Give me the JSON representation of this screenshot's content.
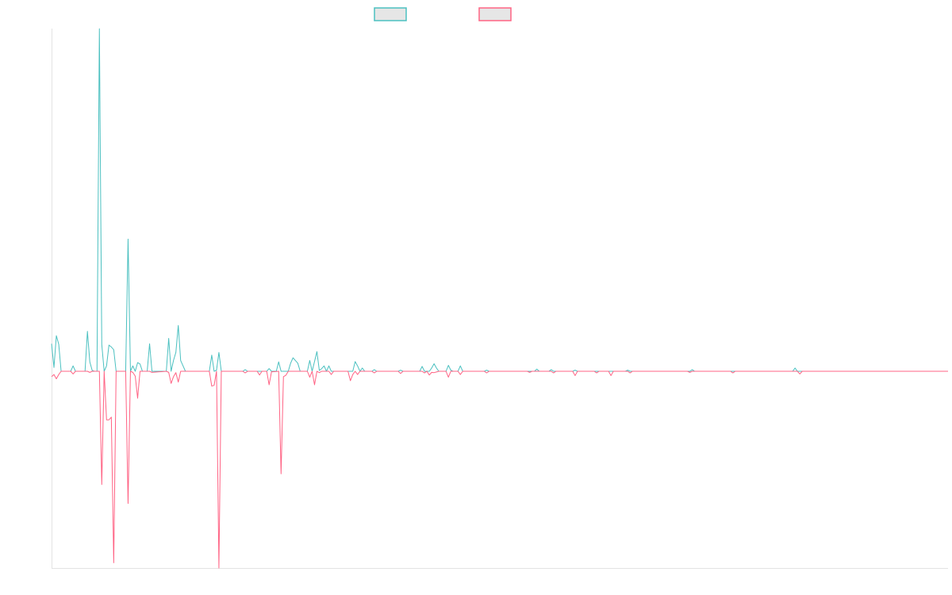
{
  "chart_data": {
    "type": "line",
    "title": "",
    "xlabel": "",
    "ylabel": "",
    "grid": false,
    "legend_position": "top-center",
    "point_count": 376,
    "ylim": [
      -1.0,
      1.0
    ],
    "series": [
      {
        "color": "#4bc0c0",
        "legend_fill": "#e6e6e6",
        "points": [
          [
            0,
            0.102
          ],
          [
            1,
            0.014
          ],
          [
            2,
            0.132
          ],
          [
            3,
            0.1
          ],
          [
            4,
            0
          ],
          [
            8,
            0
          ],
          [
            9,
            0.02
          ],
          [
            10,
            0
          ],
          [
            14,
            0
          ],
          [
            15,
            0.148
          ],
          [
            16,
            0.035
          ],
          [
            17,
            0.003
          ],
          [
            18,
            0
          ],
          [
            19,
            0
          ],
          [
            20,
            1.27
          ],
          [
            21,
            0.1
          ],
          [
            22,
            0.0
          ],
          [
            23,
            0.02
          ],
          [
            24,
            0.097
          ],
          [
            25,
            0.09
          ],
          [
            26,
            0.08
          ],
          [
            27,
            0
          ],
          [
            31,
            0
          ],
          [
            32,
            0.49
          ],
          [
            33,
            0.0
          ],
          [
            34,
            0.02
          ],
          [
            35,
            0
          ],
          [
            36,
            0.032
          ],
          [
            37,
            0.027
          ],
          [
            38,
            0
          ],
          [
            40,
            0
          ],
          [
            41,
            0.102
          ],
          [
            42,
            0
          ],
          [
            48,
            0
          ],
          [
            49,
            0.122
          ],
          [
            50,
            0
          ],
          [
            51,
            0.04
          ],
          [
            52,
            0.07
          ],
          [
            53,
            0.17
          ],
          [
            54,
            0.04
          ],
          [
            55,
            0.02
          ],
          [
            56,
            0
          ],
          [
            66,
            0
          ],
          [
            67,
            0.06
          ],
          [
            68,
            0
          ],
          [
            69,
            0.004
          ],
          [
            70,
            0.07
          ],
          [
            71,
            0
          ],
          [
            80,
            0
          ],
          [
            81,
            0.006
          ],
          [
            82,
            0
          ],
          [
            90,
            0
          ],
          [
            91,
            0.01
          ],
          [
            92,
            0
          ],
          [
            94,
            0
          ],
          [
            95,
            0.035
          ],
          [
            96,
            0
          ],
          [
            99,
            0
          ],
          [
            100,
            0.03
          ],
          [
            101,
            0.05
          ],
          [
            102,
            0.04
          ],
          [
            103,
            0.03
          ],
          [
            104,
            0
          ],
          [
            107,
            0
          ],
          [
            108,
            0.04
          ],
          [
            109,
            0
          ],
          [
            111,
            0.073
          ],
          [
            112,
            0.003
          ],
          [
            113,
            0.01
          ],
          [
            114,
            0.02
          ],
          [
            115,
            0.0
          ],
          [
            116,
            0.02
          ],
          [
            117,
            0.0
          ],
          [
            126,
            0
          ],
          [
            127,
            0.036
          ],
          [
            128,
            0.02
          ],
          [
            129,
            0
          ],
          [
            130,
            0.012
          ],
          [
            131,
            0
          ],
          [
            134,
            0
          ],
          [
            135,
            0.006
          ],
          [
            136,
            0
          ],
          [
            145,
            0
          ],
          [
            146,
            0.004
          ],
          [
            147,
            0
          ],
          [
            154,
            0
          ],
          [
            155,
            0.018
          ],
          [
            156,
            0
          ],
          [
            158,
            0
          ],
          [
            159,
            0.012
          ],
          [
            160,
            0.028
          ],
          [
            161,
            0.012
          ],
          [
            162,
            0
          ],
          [
            165,
            0
          ],
          [
            166,
            0.022
          ],
          [
            167,
            0.004
          ],
          [
            168,
            0
          ],
          [
            170,
            0
          ],
          [
            171,
            0.02
          ],
          [
            172,
            0
          ],
          [
            181,
            0
          ],
          [
            182,
            0.004
          ],
          [
            183,
            0
          ],
          [
            202,
            0
          ],
          [
            203,
            0.008
          ],
          [
            204,
            0
          ],
          [
            208,
            0
          ],
          [
            209,
            0.006
          ],
          [
            210,
            0
          ],
          [
            218,
            0
          ],
          [
            219,
            0.004
          ],
          [
            220,
            0
          ],
          [
            240,
            0
          ],
          [
            241,
            0.004
          ],
          [
            242,
            0
          ],
          [
            267,
            0
          ],
          [
            268,
            0.006
          ],
          [
            269,
            0
          ],
          [
            310,
            0
          ],
          [
            311,
            0.012
          ],
          [
            312,
            0
          ],
          [
            375,
            0
          ]
        ]
      },
      {
        "color": "#ff6384",
        "legend_fill": "#e6e6e6",
        "points": [
          [
            0,
            -0.02
          ],
          [
            1,
            -0.012
          ],
          [
            2,
            -0.028
          ],
          [
            3,
            -0.012
          ],
          [
            4,
            0
          ],
          [
            8,
            0
          ],
          [
            9,
            -0.01
          ],
          [
            10,
            0
          ],
          [
            15,
            0
          ],
          [
            16,
            -0.004
          ],
          [
            17,
            0
          ],
          [
            20,
            0
          ],
          [
            21,
            -0.42
          ],
          [
            22,
            0.0
          ],
          [
            23,
            -0.18
          ],
          [
            24,
            -0.18
          ],
          [
            25,
            -0.17
          ],
          [
            26,
            -0.71
          ],
          [
            27,
            0
          ],
          [
            31,
            0
          ],
          [
            32,
            -0.49
          ],
          [
            33,
            0
          ],
          [
            34,
            -0.004
          ],
          [
            35,
            -0.018
          ],
          [
            36,
            -0.1
          ],
          [
            37,
            0
          ],
          [
            41,
            0
          ],
          [
            42,
            -0.004
          ],
          [
            48,
            0
          ],
          [
            49,
            -0.004
          ],
          [
            50,
            -0.045
          ],
          [
            51,
            -0.02
          ],
          [
            52,
            -0.005
          ],
          [
            53,
            -0.04
          ],
          [
            54,
            0
          ],
          [
            66,
            0
          ],
          [
            67,
            -0.055
          ],
          [
            68,
            -0.052
          ],
          [
            69,
            0
          ],
          [
            70,
            -0.75
          ],
          [
            71,
            0
          ],
          [
            80,
            0
          ],
          [
            81,
            -0.006
          ],
          [
            82,
            0
          ],
          [
            86,
            0
          ],
          [
            87,
            -0.014
          ],
          [
            88,
            0
          ],
          [
            90,
            0
          ],
          [
            91,
            -0.05
          ],
          [
            92,
            -0.002
          ],
          [
            95,
            0
          ],
          [
            96,
            -0.38
          ],
          [
            97,
            -0.02
          ],
          [
            98,
            -0.015
          ],
          [
            99,
            0
          ],
          [
            107,
            0
          ],
          [
            108,
            -0.022
          ],
          [
            109,
            0.0
          ],
          [
            110,
            -0.05
          ],
          [
            111,
            0
          ],
          [
            112,
            -0.005
          ],
          [
            113,
            0
          ],
          [
            116,
            0
          ],
          [
            117,
            -0.012
          ],
          [
            118,
            0
          ],
          [
            124,
            0
          ],
          [
            125,
            -0.035
          ],
          [
            126,
            -0.012
          ],
          [
            127,
            0
          ],
          [
            128,
            -0.012
          ],
          [
            129,
            0
          ],
          [
            134,
            0
          ],
          [
            135,
            -0.006
          ],
          [
            136,
            0
          ],
          [
            145,
            0
          ],
          [
            146,
            -0.008
          ],
          [
            147,
            0
          ],
          [
            155,
            0
          ],
          [
            156,
            -0.006
          ],
          [
            157,
            0
          ],
          [
            158,
            -0.014
          ],
          [
            159,
            -0.004
          ],
          [
            160,
            -0.005
          ],
          [
            162,
            0
          ],
          [
            165,
            0
          ],
          [
            166,
            -0.022
          ],
          [
            167,
            0
          ],
          [
            170,
            0
          ],
          [
            171,
            -0.012
          ],
          [
            172,
            0
          ],
          [
            181,
            0
          ],
          [
            182,
            -0.006
          ],
          [
            183,
            0
          ],
          [
            199,
            0
          ],
          [
            200,
            -0.004
          ],
          [
            201,
            0
          ],
          [
            209,
            0
          ],
          [
            210,
            -0.006
          ],
          [
            211,
            0
          ],
          [
            218,
            0
          ],
          [
            219,
            -0.016
          ],
          [
            220,
            0
          ],
          [
            227,
            0
          ],
          [
            228,
            -0.006
          ],
          [
            229,
            0
          ],
          [
            233,
            0
          ],
          [
            234,
            -0.016
          ],
          [
            235,
            0
          ],
          [
            241,
            0
          ],
          [
            242,
            -0.006
          ],
          [
            243,
            0
          ],
          [
            266,
            0
          ],
          [
            267,
            -0.004
          ],
          [
            268,
            0
          ],
          [
            284,
            0
          ],
          [
            285,
            -0.006
          ],
          [
            286,
            0
          ],
          [
            312,
            0
          ],
          [
            313,
            -0.01
          ],
          [
            314,
            0
          ],
          [
            375,
            0
          ]
        ]
      }
    ]
  }
}
